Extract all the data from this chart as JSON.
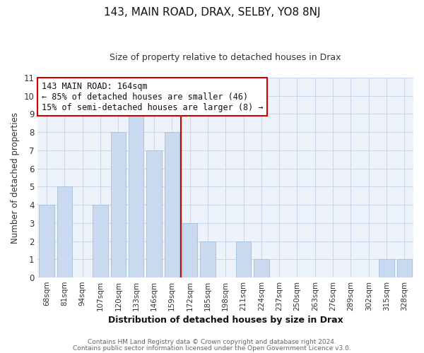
{
  "title": "143, MAIN ROAD, DRAX, SELBY, YO8 8NJ",
  "subtitle": "Size of property relative to detached houses in Drax",
  "xlabel": "Distribution of detached houses by size in Drax",
  "ylabel": "Number of detached properties",
  "bar_labels": [
    "68sqm",
    "81sqm",
    "94sqm",
    "107sqm",
    "120sqm",
    "133sqm",
    "146sqm",
    "159sqm",
    "172sqm",
    "185sqm",
    "198sqm",
    "211sqm",
    "224sqm",
    "237sqm",
    "250sqm",
    "263sqm",
    "276sqm",
    "289sqm",
    "302sqm",
    "315sqm",
    "328sqm"
  ],
  "bar_values": [
    4,
    5,
    0,
    4,
    8,
    9,
    7,
    8,
    3,
    2,
    0,
    2,
    1,
    0,
    0,
    0,
    0,
    0,
    0,
    1,
    1
  ],
  "bar_color": "#c9d9f0",
  "bar_edgecolor": "#a8c4e0",
  "grid_color": "#c8d8ec",
  "background_color": "#ffffff",
  "plot_bg_color": "#eef3fb",
  "marker_color": "#cc0000",
  "annotation_title": "143 MAIN ROAD: 164sqm",
  "annotation_line1": "← 85% of detached houses are smaller (46)",
  "annotation_line2": "15% of semi-detached houses are larger (8) →",
  "annotation_box_edgecolor": "#cc0000",
  "annotation_box_facecolor": "#ffffff",
  "ylim": [
    0,
    11
  ],
  "yticks": [
    0,
    1,
    2,
    3,
    4,
    5,
    6,
    7,
    8,
    9,
    10,
    11
  ],
  "footer1": "Contains HM Land Registry data © Crown copyright and database right 2024.",
  "footer2": "Contains public sector information licensed under the Open Government Licence v3.0."
}
